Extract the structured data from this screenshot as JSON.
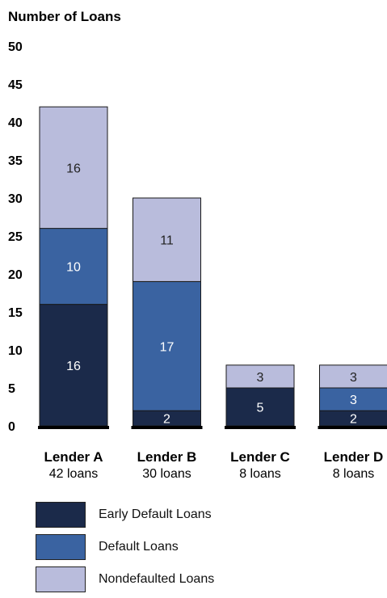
{
  "chart_data": {
    "type": "bar",
    "stacked": true,
    "ylabel": "Number of Loans",
    "ylim": [
      0,
      50
    ],
    "yticks": [
      0,
      5,
      10,
      15,
      20,
      25,
      30,
      35,
      40,
      45,
      50
    ],
    "categories": [
      "Lender A",
      "Lender B",
      "Lender C",
      "Lender D"
    ],
    "category_sublabels": [
      "42 loans",
      "30 loans",
      "8 loans",
      "8 loans"
    ],
    "series": [
      {
        "name": "Early Default Loans",
        "values": [
          16,
          2,
          5,
          2
        ],
        "color": "#1b2a4a",
        "label_color": "#ffffff"
      },
      {
        "name": "Default Loans",
        "values": [
          10,
          17,
          0,
          3
        ],
        "color": "#3a63a1",
        "label_color": "#ffffff"
      },
      {
        "name": "Nondefaulted Loans",
        "values": [
          16,
          11,
          3,
          3
        ],
        "color": "#b9bcdc",
        "label_color": "#222222"
      }
    ],
    "legend_position": "bottom-left",
    "grid": false
  }
}
